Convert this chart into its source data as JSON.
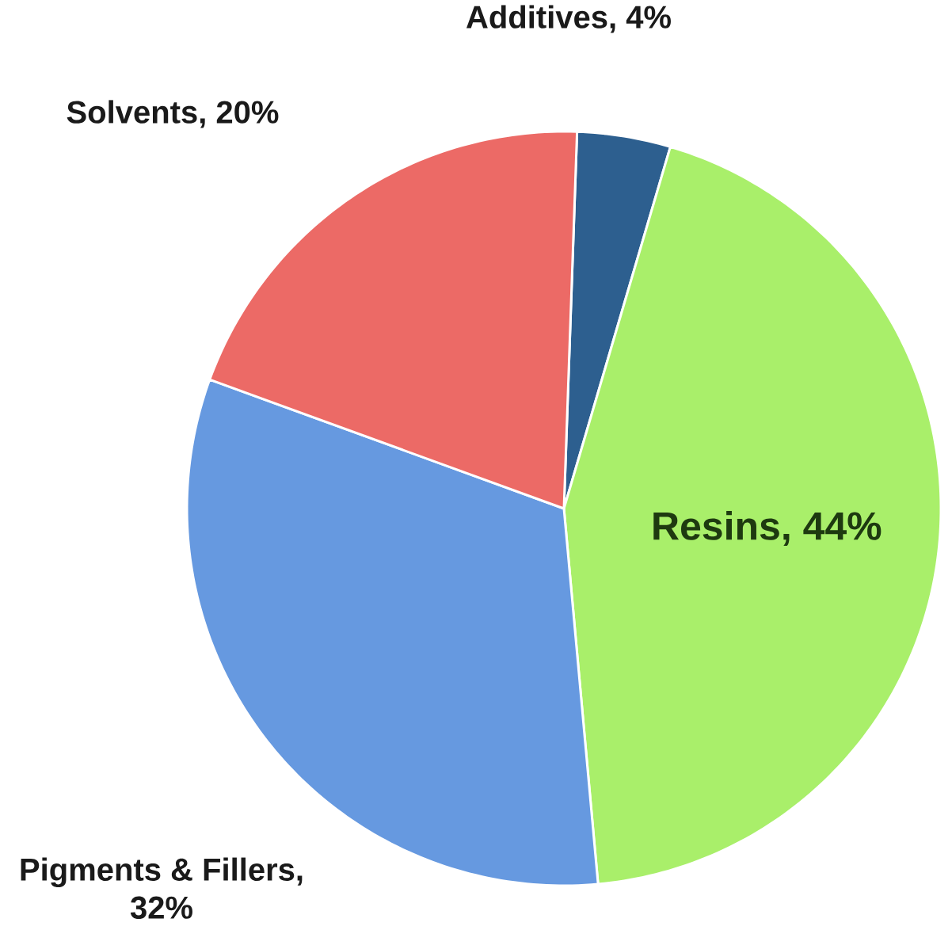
{
  "chart_data": {
    "type": "pie",
    "categories": [
      null,
      null,
      null,
      null
    ],
    "values": [
      4,
      44,
      32,
      20
    ],
    "colors": [
      "#2d5f8f",
      "#a9ef6a",
      "#6699e0",
      "#ec6a66"
    ],
    "value_labels": [
      "Additives, 4%",
      "Resins, 44%",
      "Pigments & Fillers, 32%",
      "Solvents, 20%"
    ]
  }
}
